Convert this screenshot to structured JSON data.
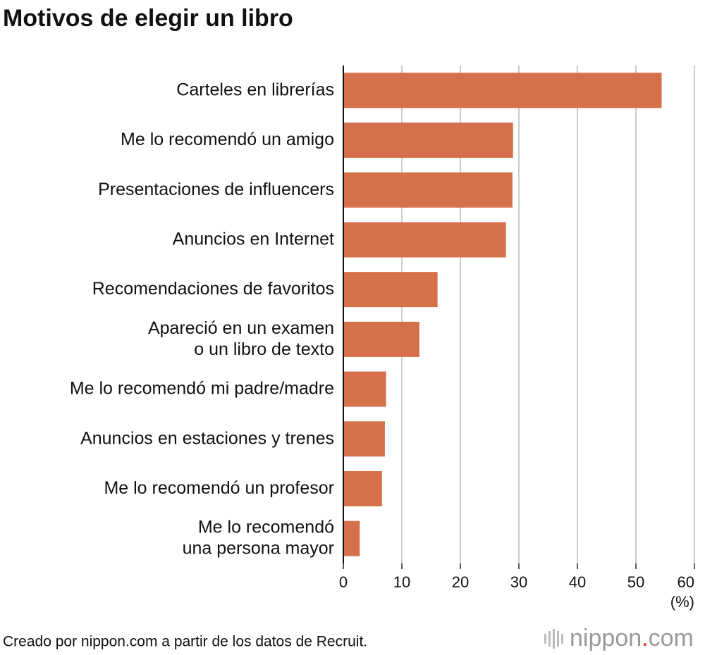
{
  "chart_data": {
    "type": "bar",
    "orientation": "horizontal",
    "title": "Motivos de elegir un libro",
    "categories": [
      "Carteles en librerías",
      "Me lo recomendó un amigo",
      "Presentaciones de influencers",
      "Anuncios en Internet",
      "Recomendaciones de favoritos",
      "Apareció en un examen\no un libro de texto",
      "Me lo recomendó mi padre/madre",
      "Anuncios en estaciones y trenes",
      "Me lo recomendó un profesor",
      "Me lo recomendó\nuna persona mayor"
    ],
    "values": [
      54.4,
      29.0,
      28.9,
      27.8,
      16.1,
      13.0,
      7.3,
      7.1,
      6.6,
      2.8
    ],
    "color": "#d5704b",
    "xlim": [
      0,
      60
    ],
    "xticks": [
      0,
      10,
      20,
      30,
      40,
      50,
      60
    ],
    "grid": true,
    "unit_label": "(%)",
    "source": "Creado por nippon.com a partir de los datos de Recruit.",
    "logo": [
      "nippon",
      ".",
      "com"
    ]
  }
}
